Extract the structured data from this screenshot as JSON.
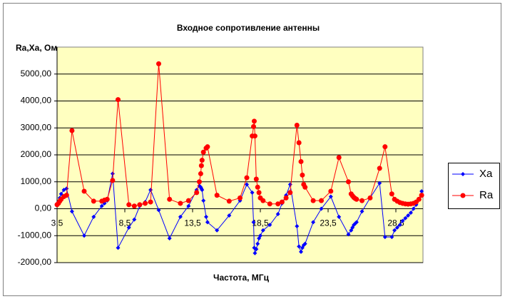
{
  "chart_data": {
    "type": "scatter-line",
    "title": "Входное сопротивление антенны",
    "y_label": "Ra,Xa, Ом",
    "x_label": "Частота, МГц",
    "x": [
      3.5,
      3.6,
      3.7,
      3.8,
      4.0,
      4.2,
      4.6,
      5.5,
      6.2,
      6.8,
      7.0,
      7.2,
      7.6,
      8.0,
      8.8,
      9.2,
      9.6,
      10.0,
      10.4,
      11.0,
      11.8,
      12.6,
      13.2,
      13.8,
      14.0,
      14.1,
      14.15,
      14.2,
      14.3,
      14.5,
      14.6,
      15.3,
      16.2,
      17.0,
      17.5,
      17.9,
      18.0,
      18.05,
      18.1,
      18.2,
      18.3,
      18.4,
      18.5,
      18.7,
      19.2,
      19.8,
      20.1,
      20.4,
      20.7,
      21.2,
      21.35,
      21.5,
      21.6,
      21.7,
      21.8,
      22.4,
      23.0,
      23.7,
      24.3,
      25.0,
      25.2,
      25.3,
      25.4,
      25.5,
      25.6,
      26.0,
      26.6,
      27.3,
      27.7,
      28.2,
      28.4,
      28.6,
      28.8,
      29.0,
      29.2,
      29.4,
      29.6,
      29.8,
      30.0,
      30.2,
      30.4
    ],
    "series": [
      {
        "name": "Xa",
        "color": "#0000ff",
        "marker": "diamond",
        "values": [
          150,
          250,
          400,
          550,
          700,
          750,
          -100,
          -1000,
          -300,
          100,
          200,
          300,
          1300,
          -1450,
          -700,
          -400,
          100,
          250,
          700,
          -50,
          -1100,
          -300,
          100,
          700,
          850,
          800,
          750,
          700,
          300,
          -300,
          -500,
          -800,
          -250,
          300,
          900,
          600,
          -500,
          -1450,
          -1650,
          -1500,
          -1300,
          -1100,
          -1000,
          -800,
          -600,
          -200,
          200,
          500,
          900,
          -650,
          -1400,
          -1600,
          -1450,
          -1350,
          -1300,
          -500,
          0,
          450,
          -300,
          -950,
          -800,
          -700,
          -600,
          -550,
          -500,
          -100,
          400,
          950,
          -1050,
          -1050,
          -800,
          -700,
          -600,
          -450,
          -350,
          -250,
          -150,
          0,
          150,
          350,
          650
        ]
      },
      {
        "name": "Ra",
        "color": "#ff0000",
        "marker": "circle",
        "values": [
          150,
          200,
          280,
          350,
          450,
          500,
          2900,
          650,
          280,
          280,
          320,
          350,
          1050,
          4050,
          150,
          100,
          150,
          200,
          250,
          5380,
          350,
          200,
          300,
          600,
          1000,
          1300,
          1600,
          1800,
          2100,
          2250,
          2300,
          500,
          280,
          400,
          1150,
          2700,
          3050,
          3250,
          2700,
          1100,
          800,
          600,
          400,
          300,
          180,
          180,
          250,
          400,
          600,
          3100,
          2450,
          1750,
          1250,
          900,
          800,
          300,
          300,
          650,
          1900,
          1000,
          550,
          480,
          420,
          380,
          350,
          300,
          400,
          1500,
          2300,
          550,
          350,
          280,
          230,
          200,
          180,
          170,
          180,
          200,
          250,
          350,
          500
        ]
      }
    ],
    "xlim": [
      3.5,
      30.5
    ],
    "xticks": [
      {
        "value": 3.5,
        "label": "3,5"
      },
      {
        "value": 8.5,
        "label": "8,5"
      },
      {
        "value": 13.5,
        "label": "13,5"
      },
      {
        "value": 18.5,
        "label": "18,5"
      },
      {
        "value": 23.5,
        "label": "23,5"
      },
      {
        "value": 28.5,
        "label": "28,5"
      }
    ],
    "ylim": [
      -2000,
      6000
    ],
    "yticks": [
      {
        "value": -2000,
        "label": "-2000,00"
      },
      {
        "value": -1000,
        "label": "-1000,00"
      },
      {
        "value": 0,
        "label": "0,00"
      },
      {
        "value": 1000,
        "label": "1000,00"
      },
      {
        "value": 2000,
        "label": "2000,00"
      },
      {
        "value": 3000,
        "label": "3000,00"
      },
      {
        "value": 4000,
        "label": "4000,00"
      },
      {
        "value": 5000,
        "label": "5000,00"
      }
    ],
    "grid": true,
    "plot_background": "#ffffc0",
    "legend": "right"
  }
}
